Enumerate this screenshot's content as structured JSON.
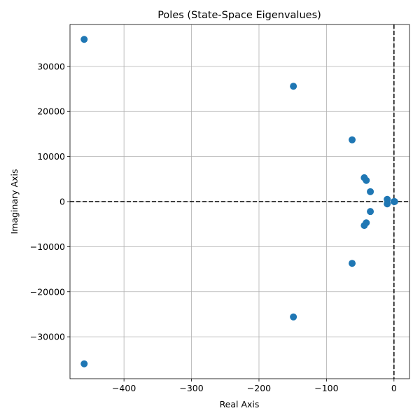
{
  "chart_data": {
    "type": "scatter",
    "title": "Poles (State-Space Eigenvalues)",
    "xlabel": "Real Axis",
    "ylabel": "Imaginary Axis",
    "xlim": [
      -480,
      23
    ],
    "ylim": [
      -39300,
      39300
    ],
    "xticks": [
      -400,
      -300,
      -200,
      -100,
      0
    ],
    "xtick_labels": [
      "−400",
      "−300",
      "−200",
      "−100",
      "0"
    ],
    "yticks": [
      -30000,
      -20000,
      -10000,
      0,
      10000,
      20000,
      30000
    ],
    "ytick_labels": [
      "−30000",
      "−20000",
      "−10000",
      "0",
      "10000",
      "20000",
      "30000"
    ],
    "grid": true,
    "reference_lines": {
      "x": 0,
      "y": 0
    },
    "marker_color": "#1f77b4",
    "points": [
      {
        "x": -459,
        "y": 36000
      },
      {
        "x": -459,
        "y": -36000
      },
      {
        "x": -149,
        "y": 25600
      },
      {
        "x": -149,
        "y": -25600
      },
      {
        "x": -62,
        "y": 13700
      },
      {
        "x": -62,
        "y": -13700
      },
      {
        "x": -44,
        "y": 5300
      },
      {
        "x": -44,
        "y": -5300
      },
      {
        "x": -41,
        "y": 4700
      },
      {
        "x": -41,
        "y": -4700
      },
      {
        "x": -35,
        "y": 2200
      },
      {
        "x": -35,
        "y": -2200
      },
      {
        "x": -10,
        "y": 500
      },
      {
        "x": -10,
        "y": -500
      },
      {
        "x": 0,
        "y": 0
      },
      {
        "x": 1,
        "y": 0
      }
    ]
  }
}
